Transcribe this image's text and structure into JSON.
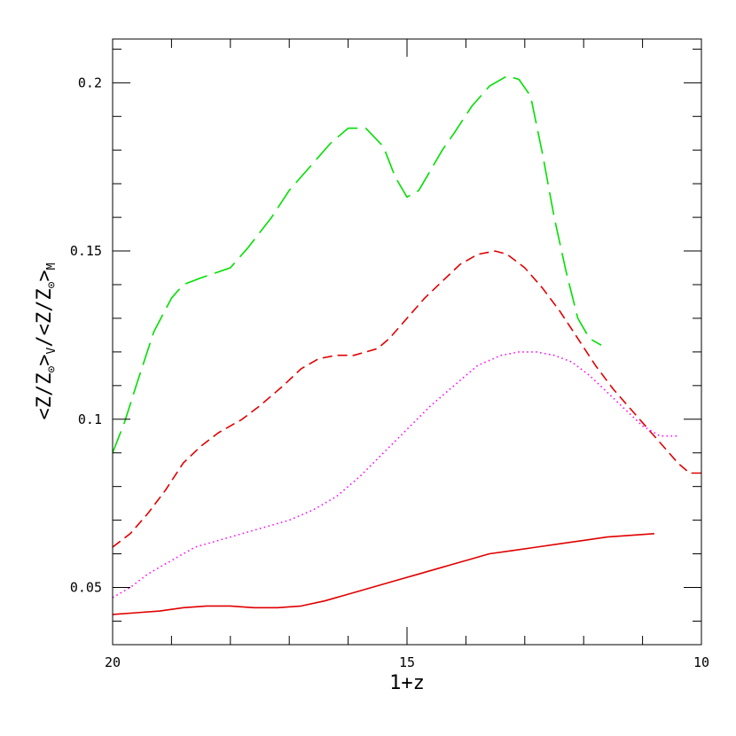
{
  "chart_data": {
    "type": "line",
    "title": "",
    "xlabel": "1+z",
    "ylabel": {
      "main_open": "<Z/Z",
      "sun": "⊙",
      "main_mid": ">",
      "sub_v": "V",
      "sep": "/<Z/Z",
      "main_close": ">",
      "sub_m": "M"
    },
    "xlim": [
      20,
      10
    ],
    "ylim": [
      0.033,
      0.213
    ],
    "x_ticks": [
      {
        "value": 20,
        "label": "20"
      },
      {
        "value": 15,
        "label": "15"
      },
      {
        "value": 10,
        "label": "10"
      }
    ],
    "y_ticks": [
      {
        "value": 0.05,
        "label": "0.05"
      },
      {
        "value": 0.1,
        "label": "0.1"
      },
      {
        "value": 0.15,
        "label": "0.15"
      },
      {
        "value": 0.2,
        "label": "0.2"
      }
    ],
    "grid": false,
    "legend": "none",
    "series": [
      {
        "color": "#00e000",
        "style": "long-dash",
        "x": [
          20.0,
          19.8,
          19.6,
          19.3,
          19.0,
          18.8,
          18.5,
          18.0,
          17.7,
          17.3,
          17.0,
          16.6,
          16.3,
          16.0,
          15.7,
          15.4,
          15.2,
          15.0,
          14.8,
          14.6,
          14.4,
          14.2,
          13.9,
          13.6,
          13.3,
          13.1,
          12.9,
          12.7,
          12.5,
          12.3,
          12.1,
          11.9,
          11.7
        ],
        "y": [
          0.09,
          0.099,
          0.11,
          0.126,
          0.136,
          0.14,
          0.142,
          0.145,
          0.151,
          0.16,
          0.168,
          0.176,
          0.182,
          0.1865,
          0.1865,
          0.181,
          0.172,
          0.166,
          0.168,
          0.174,
          0.18,
          0.185,
          0.193,
          0.199,
          0.202,
          0.201,
          0.196,
          0.179,
          0.16,
          0.144,
          0.13,
          0.124,
          0.122
        ]
      },
      {
        "color": "#e00000",
        "style": "short-dash",
        "x": [
          20.0,
          19.7,
          19.4,
          19.1,
          18.8,
          18.5,
          18.2,
          17.8,
          17.5,
          17.1,
          16.8,
          16.5,
          16.2,
          15.9,
          15.7,
          15.5,
          15.3,
          15.0,
          14.7,
          14.4,
          14.1,
          13.8,
          13.5,
          13.3,
          13.0,
          12.7,
          12.4,
          12.1,
          11.8,
          11.5,
          11.2,
          10.9,
          10.6,
          10.4,
          10.2,
          10.0
        ],
        "y": [
          0.062,
          0.066,
          0.072,
          0.079,
          0.087,
          0.092,
          0.096,
          0.1,
          0.104,
          0.11,
          0.115,
          0.118,
          0.119,
          0.119,
          0.12,
          0.121,
          0.124,
          0.13,
          0.136,
          0.141,
          0.146,
          0.149,
          0.15,
          0.149,
          0.145,
          0.139,
          0.132,
          0.124,
          0.116,
          0.109,
          0.103,
          0.097,
          0.091,
          0.087,
          0.084,
          0.084
        ]
      },
      {
        "color": "#ff00ff",
        "style": "dotted",
        "x": [
          20.0,
          19.7,
          19.4,
          19.0,
          18.6,
          18.2,
          17.8,
          17.4,
          17.0,
          16.6,
          16.2,
          15.8,
          15.4,
          15.0,
          14.6,
          14.2,
          13.8,
          13.4,
          13.1,
          12.8,
          12.5,
          12.2,
          11.9,
          11.6,
          11.3,
          11.0,
          10.7,
          10.4
        ],
        "y": [
          0.047,
          0.05,
          0.054,
          0.058,
          0.062,
          0.064,
          0.066,
          0.068,
          0.07,
          0.073,
          0.077,
          0.083,
          0.09,
          0.097,
          0.104,
          0.11,
          0.116,
          0.119,
          0.12,
          0.12,
          0.119,
          0.117,
          0.113,
          0.108,
          0.103,
          0.098,
          0.095,
          0.095
        ]
      },
      {
        "color": "#e00000",
        "style": "solid",
        "x": [
          20.0,
          19.6,
          19.2,
          18.8,
          18.4,
          18.0,
          17.6,
          17.2,
          16.8,
          16.4,
          16.0,
          15.6,
          15.2,
          14.8,
          14.4,
          14.0,
          13.6,
          13.2,
          12.8,
          12.4,
          12.0,
          11.6,
          11.2,
          10.8
        ],
        "y": [
          0.042,
          0.0425,
          0.043,
          0.044,
          0.0445,
          0.0445,
          0.044,
          0.044,
          0.0445,
          0.046,
          0.048,
          0.05,
          0.052,
          0.054,
          0.056,
          0.058,
          0.06,
          0.061,
          0.062,
          0.063,
          0.064,
          0.065,
          0.0655,
          0.066
        ]
      }
    ]
  }
}
